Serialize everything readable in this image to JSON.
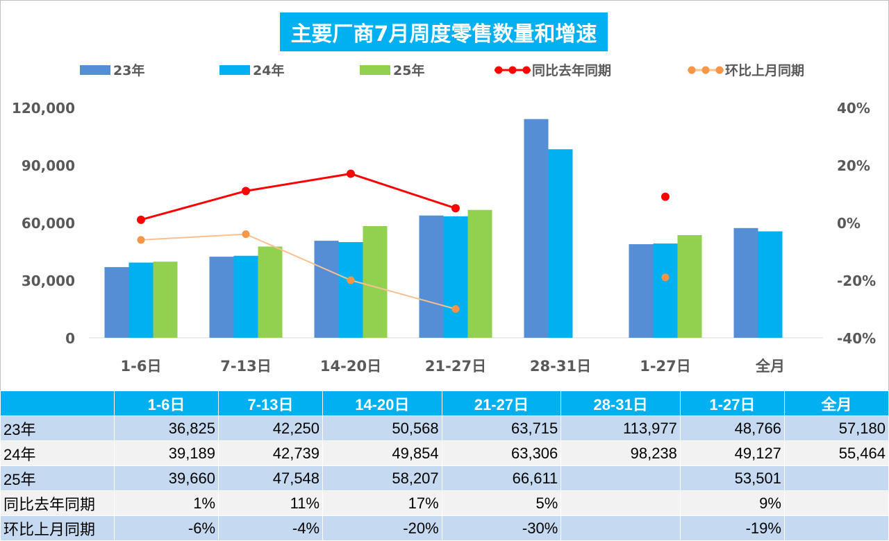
{
  "chart_data": {
    "type": "bar",
    "title": "主要厂商7月周度零售数量和增速",
    "categories": [
      "1-6日",
      "7-13日",
      "14-20日",
      "21-27日",
      "28-31日",
      "1-27日",
      "全月"
    ],
    "series": [
      {
        "name": "23年",
        "type": "bar",
        "color": "#558ed5",
        "values": [
          36825,
          42250,
          50568,
          63715,
          113977,
          48766,
          57180
        ]
      },
      {
        "name": "24年",
        "type": "bar",
        "color": "#00b0f0",
        "values": [
          39189,
          42739,
          49854,
          63306,
          98238,
          49127,
          55464
        ]
      },
      {
        "name": "25年",
        "type": "bar",
        "color": "#92d050",
        "values": [
          39660,
          47548,
          58207,
          66611,
          null,
          53501,
          null
        ]
      },
      {
        "name": "同比去年同期",
        "type": "line",
        "axis": "right",
        "color": "#ff0000",
        "values": [
          1,
          11,
          17,
          5,
          null,
          9,
          null
        ]
      },
      {
        "name": "环比上月同期",
        "type": "line",
        "axis": "right",
        "color": "#fac090",
        "marker_color": "#f79646",
        "values": [
          -6,
          -4,
          -20,
          -30,
          null,
          -19,
          null
        ]
      }
    ],
    "left_axis": {
      "ylim": [
        0,
        120000
      ],
      "ticks": [
        "0",
        "30,000",
        "60,000",
        "90,000",
        "120,000"
      ]
    },
    "right_axis": {
      "ylim": [
        -40,
        40
      ],
      "ticks": [
        "-40%",
        "-20%",
        "0%",
        "20%",
        "40%"
      ]
    },
    "legend_position": "top",
    "grid": false
  },
  "table": {
    "headers": [
      "",
      "1-6日",
      "7-13日",
      "14-20日",
      "21-27日",
      "28-31日",
      "1-27日",
      "全月"
    ],
    "rows": [
      [
        "23年",
        "36,825",
        "42,250",
        "50,568",
        "63,715",
        "113,977",
        "48,766",
        "57,180"
      ],
      [
        "24年",
        "39,189",
        "42,739",
        "49,854",
        "63,306",
        "98,238",
        "49,127",
        "55,464"
      ],
      [
        "25年",
        "39,660",
        "47,548",
        "58,207",
        "66,611",
        "",
        "53,501",
        ""
      ],
      [
        "同比去年同期",
        "1%",
        "11%",
        "17%",
        "5%",
        "",
        "9%",
        ""
      ],
      [
        "环比上月同期",
        "-6%",
        "-4%",
        "-20%",
        "-30%",
        "",
        "-19%",
        ""
      ]
    ]
  }
}
